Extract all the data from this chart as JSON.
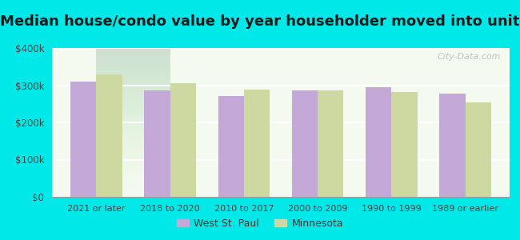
{
  "title": "Median house/condo value by year householder moved into unit",
  "categories": [
    "2021 or later",
    "2018 to 2020",
    "2010 to 2017",
    "2000 to 2009",
    "1990 to 1999",
    "1989 or earlier"
  ],
  "west_st_paul": [
    310000,
    287000,
    272000,
    285000,
    295000,
    278000
  ],
  "minnesota": [
    328000,
    305000,
    288000,
    286000,
    282000,
    253000
  ],
  "bar_color_wsp": "#c4a8d8",
  "bar_color_mn": "#cdd9a0",
  "background_color": "#00e8e8",
  "plot_bg_top": "#f5faf0",
  "plot_bg_bottom": "#e8f5e0",
  "title_fontsize": 13,
  "ylim": [
    0,
    400000
  ],
  "yticks": [
    0,
    100000,
    200000,
    300000,
    400000
  ],
  "ytick_labels": [
    "$0",
    "$100k",
    "$200k",
    "$300k",
    "$400k"
  ],
  "legend_wsp": "West St. Paul",
  "legend_mn": "Minnesota",
  "watermark": "City-Data.com"
}
